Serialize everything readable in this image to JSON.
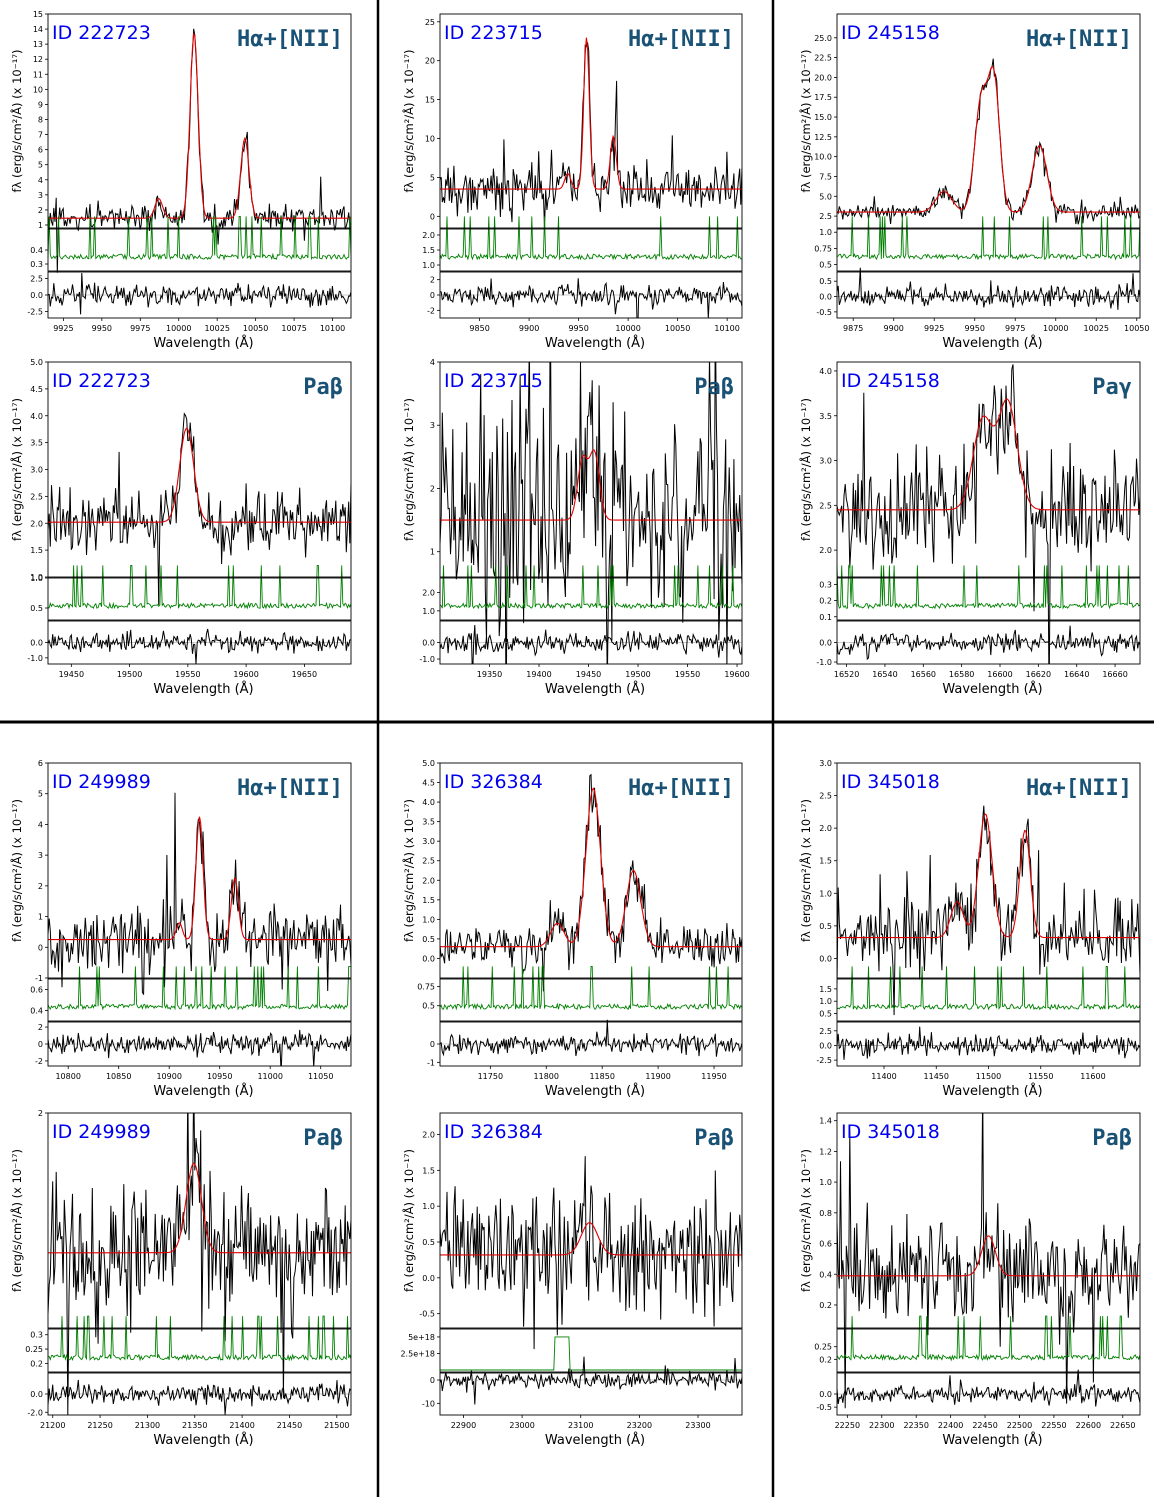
{
  "figure": {
    "xlabel": "Wavelength (Å)",
    "ylabel": "fλ (erg/s/cm²/Å) (x 10⁻¹⁷)"
  },
  "chart_data": [
    {
      "type": "line",
      "id_label": "ID 222723",
      "line_label": "Hα+[NII]",
      "xlabel": "Wavelength (Å)",
      "ylabel": "fλ (erg/s/cm²/Å) (x 10⁻¹⁷)",
      "xlim": [
        9915,
        10112
      ],
      "xticks": [
        9925,
        9950,
        9975,
        10000,
        10025,
        10050,
        10075,
        10100
      ],
      "ylim": [
        0.8,
        15
      ],
      "yticks": [
        1,
        2,
        3,
        4,
        5,
        6,
        7,
        8,
        9,
        10,
        11,
        12,
        13,
        14,
        15
      ],
      "ytick_labels": [
        "1",
        "2",
        "3",
        "4",
        "5",
        "6",
        "7",
        "8",
        "9",
        "10",
        "11",
        "12",
        "13",
        "14",
        "15"
      ],
      "continuum": 1.45,
      "lines": [
        {
          "center": 9987,
          "amp": 1.3,
          "sigma": 2.5
        },
        {
          "center": 10010,
          "amp": 12.3,
          "sigma": 2.6
        },
        {
          "center": 10043,
          "amp": 5.3,
          "sigma": 2.7
        }
      ],
      "noise": 0.45,
      "sub1": {
        "ylim": [
          0.25,
          0.55
        ],
        "yticks": [
          0.3,
          0.4
        ],
        "ytick_labels": [
          "0.3",
          "0.4"
        ]
      },
      "sub2": {
        "ylim": [
          -3.5,
          3.5
        ],
        "yticks": [
          -2.5,
          0,
          2.5
        ],
        "ytick_labels": [
          "-2.5",
          "0.0",
          "2.5"
        ]
      }
    },
    {
      "type": "line",
      "id_label": "ID 223715",
      "line_label": "Hα+[NII]",
      "xlabel": "Wavelength (Å)",
      "ylabel": "fλ (erg/s/cm²/Å) (x 10⁻¹⁷)",
      "xlim": [
        9810,
        10115
      ],
      "xticks": [
        9850,
        9900,
        9950,
        10000,
        10050,
        10100
      ],
      "ylim": [
        -1.5,
        26
      ],
      "yticks": [
        0,
        5,
        10,
        15,
        20,
        25
      ],
      "ytick_labels": [
        "0",
        "5",
        "10",
        "15",
        "20",
        "25"
      ],
      "continuum": 3.5,
      "lines": [
        {
          "center": 9939,
          "amp": 2.0,
          "sigma": 3.0
        },
        {
          "center": 9958,
          "amp": 19.5,
          "sigma": 2.8
        },
        {
          "center": 9985,
          "amp": 6.8,
          "sigma": 3.0
        }
      ],
      "noise": 1.6,
      "sub1": {
        "ylim": [
          0.8,
          2.2
        ],
        "yticks": [
          1.0,
          1.5,
          2.0
        ],
        "ytick_labels": [
          "1.0",
          "1.5",
          "2.0"
        ]
      },
      "sub2": {
        "ylim": [
          -3,
          3
        ],
        "yticks": [
          -2,
          0,
          2
        ],
        "ytick_labels": [
          "-2",
          "0",
          "2"
        ]
      }
    },
    {
      "type": "line",
      "id_label": "ID 245158",
      "line_label": "Hα+[NII]",
      "xlabel": "Wavelength (Å)",
      "ylabel": "fλ (erg/s/cm²/Å) (x 10⁻¹⁷)",
      "xlim": [
        9865,
        10052
      ],
      "xticks": [
        9875,
        9900,
        9925,
        9950,
        9975,
        10000,
        10025,
        10050
      ],
      "ylim": [
        1,
        28
      ],
      "yticks": [
        2.5,
        5,
        7.5,
        10,
        12.5,
        15,
        17.5,
        20,
        22.5,
        25
      ],
      "ytick_labels": [
        "2.5",
        "5.0",
        "7.5",
        "10.0",
        "12.5",
        "15.0",
        "17.5",
        "20.0",
        "22.5",
        "25.0"
      ],
      "continuum": 3.0,
      "lines": [
        {
          "center": 9931,
          "amp": 2.6,
          "sigma": 5.0
        },
        {
          "center": 9954,
          "amp": 14.0,
          "sigma": 4.0
        },
        {
          "center": 9962,
          "amp": 16.0,
          "sigma": 3.5
        },
        {
          "center": 9990,
          "amp": 8.4,
          "sigma": 4.5
        }
      ],
      "noise": 0.55,
      "sub1": {
        "ylim": [
          0.4,
          1.05
        ],
        "yticks": [
          0.5,
          0.75,
          1.0
        ],
        "ytick_labels": [
          "0.5",
          "0.75",
          "1.0"
        ]
      },
      "sub2": {
        "ylim": [
          -0.7,
          0.8
        ],
        "yticks": [
          -0.5,
          0,
          0.5
        ],
        "ytick_labels": [
          "-0.5",
          "0.0",
          "0.5"
        ]
      }
    },
    {
      "type": "line",
      "id_label": "ID 222723",
      "line_label": "Paβ",
      "xlabel": "Wavelength (Å)",
      "ylabel": "fλ (erg/s/cm²/Å) (x 10⁻¹⁷)",
      "xlim": [
        19430,
        19690
      ],
      "xticks": [
        19450,
        19500,
        19550,
        19600,
        19650
      ],
      "ylim": [
        1.0,
        5.0
      ],
      "yticks": [
        1.0,
        1.5,
        2.0,
        2.5,
        3.0,
        3.5,
        4.0,
        4.5,
        5.0
      ],
      "ytick_labels": [
        "1.0",
        "1.5",
        "2.0",
        "2.5",
        "3.0",
        "3.5",
        "4.0",
        "4.5",
        "5.0"
      ],
      "continuum": 2.02,
      "lines": [
        {
          "center": 19549,
          "amp": 1.75,
          "sigma": 6.0
        }
      ],
      "noise": 0.28,
      "sub1": {
        "ylim": [
          0.3,
          1.0
        ],
        "yticks": [
          0.5,
          1.0
        ],
        "ytick_labels": [
          "0.5",
          "1.0"
        ]
      },
      "sub2": {
        "ylim": [
          -1.4,
          1.4
        ],
        "yticks": [
          -1.0,
          0
        ],
        "ytick_labels": [
          "-1.0",
          "0.0"
        ]
      }
    },
    {
      "type": "line",
      "id_label": "ID 223715",
      "line_label": "Paβ",
      "xlabel": "Wavelength (Å)",
      "ylabel": "fλ (erg/s/cm²/Å) (x 10⁻¹⁷)",
      "xlim": [
        19300,
        19605
      ],
      "xticks": [
        19350,
        19400,
        19450,
        19500,
        19550,
        19600
      ],
      "ylim": [
        0.6,
        4.0
      ],
      "yticks": [
        1,
        2,
        3,
        4
      ],
      "ytick_labels": [
        "1",
        "2",
        "3",
        "4"
      ],
      "continuum": 1.5,
      "lines": [
        {
          "center": 19444,
          "amp": 0.95,
          "sigma": 5.0
        },
        {
          "center": 19456,
          "amp": 1.05,
          "sigma": 5.0
        }
      ],
      "noise": 0.85,
      "sub1": {
        "ylim": [
          0.5,
          2.8
        ],
        "yticks": [
          1.0,
          2.0
        ],
        "ytick_labels": [
          "1.0",
          "2.0"
        ]
      },
      "sub2": {
        "ylim": [
          -1.3,
          1.3
        ],
        "yticks": [
          -1.0,
          0
        ],
        "ytick_labels": [
          "-1.0",
          "0.0"
        ]
      }
    },
    {
      "type": "line",
      "id_label": "ID 245158",
      "line_label": "Paγ",
      "xlabel": "Wavelength (Å)",
      "ylabel": "fλ (erg/s/cm²/Å) (x 10⁻¹⁷)",
      "xlim": [
        16515,
        16673
      ],
      "xticks": [
        16520,
        16540,
        16560,
        16580,
        16600,
        16620,
        16640,
        16660
      ],
      "ylim": [
        1.7,
        4.1
      ],
      "yticks": [
        2.0,
        2.5,
        3.0,
        3.5,
        4.0
      ],
      "ytick_labels": [
        "2.0",
        "2.5",
        "3.0",
        "3.5",
        "4.0"
      ],
      "continuum": 2.45,
      "lines": [
        {
          "center": 16591,
          "amp": 1.0,
          "sigma": 5.0
        },
        {
          "center": 16604,
          "amp": 1.2,
          "sigma": 5.0
        }
      ],
      "noise": 0.3,
      "sub1": {
        "ylim": [
          0.08,
          0.34
        ],
        "yticks": [
          0.1,
          0.2,
          0.3
        ],
        "ytick_labels": [
          "0.1",
          "0.2",
          "0.3"
        ]
      },
      "sub2": {
        "ylim": [
          -1.1,
          1.1
        ],
        "yticks": [
          -1.0,
          0
        ],
        "ytick_labels": [
          "-1.0",
          "0.0"
        ]
      }
    },
    {
      "type": "line",
      "id_label": "ID 249989",
      "line_label": "Hα+[NII]",
      "xlabel": "Wavelength (Å)",
      "ylabel": "fλ (erg/s/cm²/Å) (x 10⁻¹⁷)",
      "xlim": [
        10780,
        11080
      ],
      "xticks": [
        10800,
        10850,
        10900,
        10950,
        11000,
        11050
      ],
      "ylim": [
        -1,
        6
      ],
      "yticks": [
        -1,
        0,
        1,
        2,
        3,
        4,
        5,
        6
      ],
      "ytick_labels": [
        "-1",
        "0",
        "1",
        "2",
        "3",
        "4",
        "5",
        "6"
      ],
      "continuum": 0.25,
      "lines": [
        {
          "center": 10910,
          "amp": 0.55,
          "sigma": 3.0
        },
        {
          "center": 10930,
          "amp": 4.0,
          "sigma": 3.5
        },
        {
          "center": 10965,
          "amp": 2.0,
          "sigma": 3.5
        }
      ],
      "noise": 0.55,
      "sub1": {
        "ylim": [
          0.3,
          0.7
        ],
        "yticks": [
          0.4,
          0.6
        ],
        "ytick_labels": [
          "0.4",
          "0.6"
        ]
      },
      "sub2": {
        "ylim": [
          -2.6,
          2.6
        ],
        "yticks": [
          -2,
          0,
          2
        ],
        "ytick_labels": [
          "-2",
          "0",
          "2"
        ]
      }
    },
    {
      "type": "line",
      "id_label": "ID 326384",
      "line_label": "Hα+[NII]",
      "xlabel": "Wavelength (Å)",
      "ylabel": "fλ (erg/s/cm²/Å) (x 10⁻¹⁷)",
      "xlim": [
        11705,
        11975
      ],
      "xticks": [
        11750,
        11800,
        11850,
        11900,
        11950
      ],
      "ylim": [
        -0.5,
        5.0
      ],
      "yticks": [
        0,
        0.5,
        1,
        1.5,
        2,
        2.5,
        3,
        3.5,
        4,
        4.5,
        5
      ],
      "ytick_labels": [
        "0.0",
        "0.5",
        "1.0",
        "1.5",
        "2.0",
        "2.5",
        "3.0",
        "3.5",
        "4.0",
        "4.5",
        "5.0"
      ],
      "continuum": 0.3,
      "lines": [
        {
          "center": 11810,
          "amp": 0.6,
          "sigma": 6.0
        },
        {
          "center": 11842,
          "amp": 4.05,
          "sigma": 6.5
        },
        {
          "center": 11878,
          "amp": 1.95,
          "sigma": 6.5
        }
      ],
      "noise": 0.28,
      "sub1": {
        "ylim": [
          0.3,
          0.85
        ],
        "yticks": [
          0.5,
          0.75
        ],
        "ytick_labels": [
          "0.5",
          "0.75"
        ]
      },
      "sub2": {
        "ylim": [
          -1.2,
          1.2
        ],
        "yticks": [
          -1,
          0
        ],
        "ytick_labels": [
          "-1",
          "0"
        ]
      }
    },
    {
      "type": "line",
      "id_label": "ID 345018",
      "line_label": "Hα+[NII]",
      "xlabel": "Wavelength (Å)",
      "ylabel": "fλ (erg/s/cm²/Å) (x 10⁻¹⁷)",
      "xlim": [
        11355,
        11645
      ],
      "xticks": [
        11400,
        11450,
        11500,
        11550,
        11600
      ],
      "ylim": [
        -0.3,
        3.0
      ],
      "yticks": [
        0,
        0.5,
        1,
        1.5,
        2,
        2.5,
        3
      ],
      "ytick_labels": [
        "0.0",
        "0.5",
        "1.0",
        "1.5",
        "2.0",
        "2.5",
        "3.0"
      ],
      "continuum": 0.32,
      "lines": [
        {
          "center": 11470,
          "amp": 0.55,
          "sigma": 6.0
        },
        {
          "center": 11497,
          "amp": 1.9,
          "sigma": 6.5
        },
        {
          "center": 11535,
          "amp": 1.65,
          "sigma": 5.0
        }
      ],
      "noise": 0.3,
      "sub1": {
        "ylim": [
          0.2,
          1.9
        ],
        "yticks": [
          0.5,
          1.0,
          1.5
        ],
        "ytick_labels": [
          "0.5",
          "1.0",
          "1.5"
        ]
      },
      "sub2": {
        "ylim": [
          -3.5,
          4
        ],
        "yticks": [
          -2.5,
          0,
          2.5
        ],
        "ytick_labels": [
          "-2.5",
          "0.0",
          "2.5"
        ]
      }
    },
    {
      "type": "line",
      "id_label": "ID 249989",
      "line_label": "Paβ",
      "xlabel": "Wavelength (Å)",
      "ylabel": "fλ (erg/s/cm²/Å) (x 10⁻¹⁷)",
      "xlim": [
        21195,
        21515
      ],
      "xticks": [
        21200,
        21250,
        21300,
        21350,
        21400,
        21450,
        21500
      ],
      "ylim": [
        -1.0,
        2.0
      ],
      "yticks": [
        2
      ],
      "ytick_labels": [
        "2"
      ],
      "continuum": 0.05,
      "lines": [
        {
          "center": 21349,
          "amp": 1.25,
          "sigma": 8.0
        }
      ],
      "noise": 0.45,
      "sub1": {
        "ylim": [
          0.17,
          0.32
        ],
        "yticks": [
          0.2,
          0.25,
          0.3
        ],
        "ytick_labels": [
          "0.2",
          "0.25",
          "0.3"
        ]
      },
      "sub2": {
        "ylim": [
          -2.3,
          2.3
        ],
        "yticks": [
          -2.0,
          0
        ],
        "ytick_labels": [
          "-2.0",
          "0.0"
        ]
      }
    },
    {
      "type": "line",
      "id_label": "ID 326384",
      "line_label": "Paβ",
      "xlabel": "Wavelength (Å)",
      "ylabel": "fλ (erg/s/cm²/Å) (x 10⁻¹⁷)",
      "xlim": [
        22860,
        23375
      ],
      "xticks": [
        22900,
        23000,
        23100,
        23200,
        23300
      ],
      "ylim": [
        -0.7,
        2.3
      ],
      "yticks": [
        -0.5,
        0,
        0.5,
        1.0,
        1.5,
        2.0
      ],
      "ytick_labels": [
        "-0.5",
        "0.0",
        "0.5",
        "1.0",
        "1.5",
        "2.0"
      ],
      "continuum": 0.32,
      "lines": [
        {
          "center": 23115,
          "amp": 0.45,
          "sigma": 14.0
        }
      ],
      "noise": 0.45,
      "sub1": {
        "ylim": [
          -3e+17,
          6.2e+18
        ],
        "yticks": [
          2.5e+18,
          5e+18
        ],
        "ytick_labels": [
          "2.5e+18",
          "5e+18"
        ]
      },
      "sub2": {
        "ylim": [
          -15,
          3
        ],
        "yticks": [
          -10,
          0
        ],
        "ytick_labels": [
          "-10",
          "0"
        ]
      }
    },
    {
      "type": "line",
      "id_label": "ID 345018",
      "line_label": "Paβ",
      "xlabel": "Wavelength (Å)",
      "ylabel": "fλ (erg/s/cm²/Å) (x 10⁻¹⁷)",
      "xlim": [
        22235,
        22675
      ],
      "xticks": [
        22250,
        22300,
        22350,
        22400,
        22450,
        22500,
        22550,
        22600,
        22650
      ],
      "ylim": [
        0.05,
        1.45
      ],
      "yticks": [
        0.2,
        0.4,
        0.6,
        0.8,
        1.0,
        1.2,
        1.4
      ],
      "ytick_labels": [
        "0.2",
        "0.4",
        "0.6",
        "0.8",
        "1.0",
        "1.2",
        "1.4"
      ],
      "continuum": 0.39,
      "lines": [
        {
          "center": 22455,
          "amp": 0.26,
          "sigma": 10.0
        }
      ],
      "noise": 0.17,
      "sub1": {
        "ylim": [
          0.15,
          0.32
        ],
        "yticks": [
          0.2,
          0.25
        ],
        "ytick_labels": [
          "0.2",
          "0.25"
        ]
      },
      "sub2": {
        "ylim": [
          -0.8,
          0.8
        ],
        "yticks": [
          -0.5,
          0
        ],
        "ytick_labels": [
          "-0.5",
          "0.0"
        ]
      }
    }
  ]
}
